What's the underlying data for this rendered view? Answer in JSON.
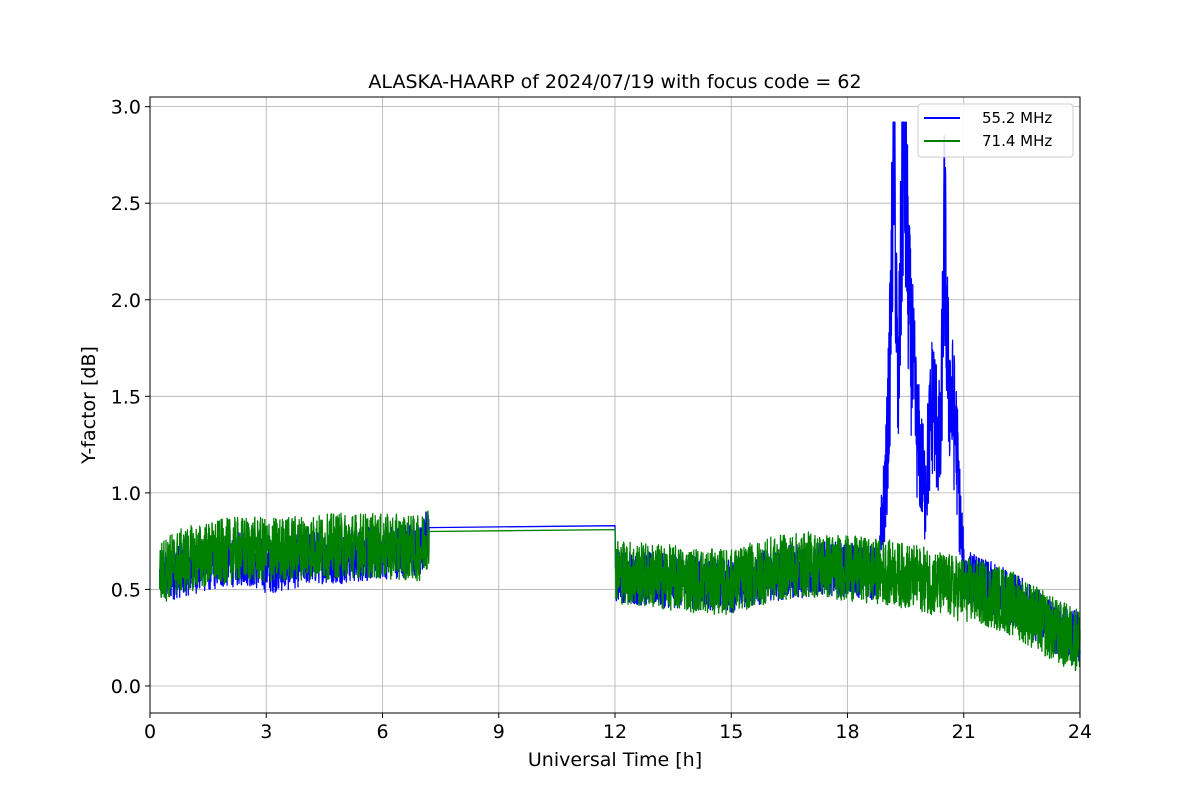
{
  "chart_data": {
    "type": "line",
    "title": "ALASKA-HAARP of 2024/07/19 with focus code = 62",
    "xlabel": "Universal Time [h]",
    "ylabel": "Y-factor [dB]",
    "xlim": [
      0,
      24
    ],
    "ylim": [
      -0.14,
      3.05
    ],
    "xticks": [
      0,
      3,
      6,
      9,
      12,
      15,
      18,
      21,
      24
    ],
    "xtick_labels": [
      "0",
      "3",
      "6",
      "9",
      "12",
      "15",
      "18",
      "21",
      "24"
    ],
    "yticks": [
      0.0,
      0.5,
      1.0,
      1.5,
      2.0,
      2.5,
      3.0
    ],
    "ytick_labels": [
      "0.0",
      "0.5",
      "1.0",
      "1.5",
      "2.0",
      "2.5",
      "3.0"
    ],
    "grid": true,
    "legend_position": "top-right",
    "series": [
      {
        "name": "55.2 MHz",
        "color": "#0000ff",
        "x": [
          0.25,
          0.5,
          1,
          1.5,
          2,
          2.5,
          3,
          3.5,
          4,
          4.5,
          5,
          5.5,
          6,
          6.5,
          7,
          7.2,
          12.0,
          12.0,
          12.5,
          13,
          13.5,
          14,
          14.5,
          15,
          15.5,
          16,
          16.5,
          17,
          17.5,
          18,
          18.5,
          18.8,
          19.0,
          19.1,
          19.2,
          19.3,
          19.45,
          19.6,
          19.8,
          20.0,
          20.2,
          20.4,
          20.5,
          20.6,
          20.8,
          20.9,
          21.0,
          21.5,
          22,
          22.5,
          23,
          23.5,
          24
        ],
        "y": [
          0.56,
          0.58,
          0.61,
          0.63,
          0.65,
          0.66,
          0.62,
          0.63,
          0.66,
          0.67,
          0.67,
          0.68,
          0.69,
          0.7,
          0.7,
          0.82,
          0.83,
          0.58,
          0.56,
          0.55,
          0.54,
          0.54,
          0.53,
          0.52,
          0.55,
          0.57,
          0.59,
          0.6,
          0.61,
          0.6,
          0.59,
          0.58,
          1.1,
          1.7,
          2.9,
          1.4,
          2.9,
          1.9,
          1.3,
          1.0,
          1.5,
          1.2,
          2.37,
          1.6,
          1.3,
          0.9,
          0.58,
          0.52,
          0.48,
          0.42,
          0.35,
          0.28,
          0.25
        ]
      },
      {
        "name": "71.4 MHz",
        "color": "#008000",
        "x": [
          0.25,
          0.5,
          1,
          1.5,
          2,
          2.5,
          3,
          3.5,
          4,
          4.5,
          5,
          5.5,
          6,
          6.5,
          7,
          7.2,
          12.0,
          12.0,
          12.5,
          13,
          13.5,
          14,
          14.5,
          15,
          15.5,
          16,
          16.5,
          17,
          17.5,
          18,
          18.5,
          19,
          19.5,
          20,
          20.5,
          21,
          21.5,
          22,
          22.5,
          23,
          23.5,
          24
        ],
        "y": [
          0.58,
          0.62,
          0.66,
          0.68,
          0.7,
          0.71,
          0.7,
          0.71,
          0.72,
          0.72,
          0.73,
          0.73,
          0.72,
          0.72,
          0.71,
          0.8,
          0.81,
          0.6,
          0.58,
          0.57,
          0.56,
          0.55,
          0.54,
          0.54,
          0.57,
          0.6,
          0.62,
          0.63,
          0.62,
          0.61,
          0.6,
          0.59,
          0.57,
          0.55,
          0.52,
          0.5,
          0.48,
          0.45,
          0.4,
          0.33,
          0.27,
          0.24
        ]
      }
    ]
  }
}
